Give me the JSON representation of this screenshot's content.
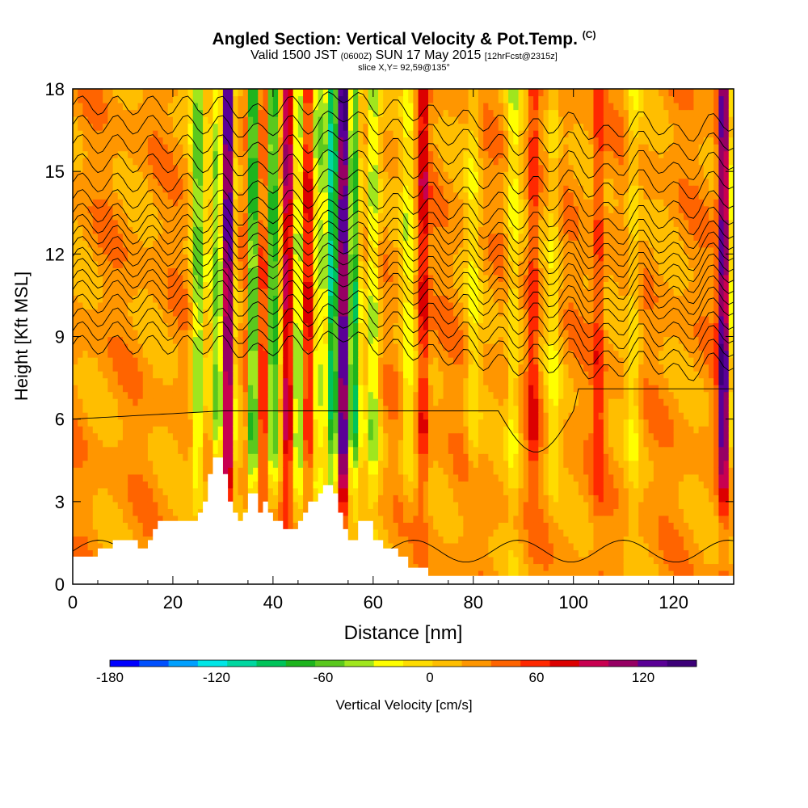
{
  "title": {
    "main": "Angled Section: Vertical Velocity & Pot.Temp.",
    "copyright": "(C)",
    "valid_prefix": "Valid 1500 JST",
    "valid_utc": "(0600Z)",
    "valid_suffix": "SUN 17 May 2015",
    "forecast": "[12hrFcst@2315z]",
    "slice": "slice X,Y= 92,59@135°"
  },
  "colorbar": {
    "title": "Vertical Velocity [cm/s]",
    "tick_labels": [
      "-180",
      "-120",
      "-60",
      "0",
      "60",
      "120"
    ],
    "tick_values": [
      -180,
      -120,
      -60,
      0,
      60,
      120
    ],
    "range": [
      -180,
      150
    ],
    "step": 15,
    "colors": [
      "#0000ff",
      "#0050ff",
      "#00a0ff",
      "#00e6e6",
      "#00d7a0",
      "#00c45a",
      "#1eb41e",
      "#5ac81e",
      "#a0e61e",
      "#ffff00",
      "#ffdc00",
      "#ffbe00",
      "#ff9600",
      "#ff6400",
      "#ff2800",
      "#dc0000",
      "#c80050",
      "#960064",
      "#5a0096",
      "#3c0078"
    ]
  },
  "chart_data": {
    "type": "heatmap",
    "xlabel": "Distance [nm]",
    "ylabel": "Height [Kft MSL]",
    "xlim": [
      0,
      132
    ],
    "ylim": [
      0,
      18
    ],
    "x_ticks": [
      "0",
      "20",
      "40",
      "60",
      "80",
      "100",
      "120"
    ],
    "y_ticks": [
      "0",
      "3",
      "6",
      "9",
      "12",
      "15",
      "18"
    ],
    "x_tick_values": [
      0,
      20,
      40,
      60,
      80,
      100,
      120
    ],
    "y_tick_values": [
      0,
      3,
      6,
      9,
      12,
      15,
      18
    ],
    "field": "Vertical Velocity (cm/s)",
    "contour_field": "Potential Temperature",
    "terrain": [
      [
        0,
        1
      ],
      [
        5,
        1
      ],
      [
        5,
        1.3
      ],
      [
        8,
        1.3
      ],
      [
        8,
        1.6
      ],
      [
        13,
        1.6
      ],
      [
        13,
        1.3
      ],
      [
        15,
        1.3
      ],
      [
        15,
        1.6
      ],
      [
        16,
        1.6
      ],
      [
        16,
        2
      ],
      [
        17,
        2
      ],
      [
        17,
        2.3
      ],
      [
        25,
        2.3
      ],
      [
        25,
        2.6
      ],
      [
        26,
        2.6
      ],
      [
        26,
        3
      ],
      [
        27,
        3
      ],
      [
        27,
        4
      ],
      [
        28,
        4
      ],
      [
        28,
        4.6
      ],
      [
        30,
        4.6
      ],
      [
        30,
        4
      ],
      [
        31,
        4
      ],
      [
        31,
        3
      ],
      [
        32,
        3
      ],
      [
        32,
        2.6
      ],
      [
        33,
        2.6
      ],
      [
        33,
        2.3
      ],
      [
        34,
        2.3
      ],
      [
        34,
        2.6
      ],
      [
        35,
        2.6
      ],
      [
        35,
        3.3
      ],
      [
        37,
        3.3
      ],
      [
        37,
        2.6
      ],
      [
        38,
        2.6
      ],
      [
        38,
        3
      ],
      [
        39,
        3
      ],
      [
        39,
        2.6
      ],
      [
        40,
        2.6
      ],
      [
        40,
        2.3
      ],
      [
        42,
        2.3
      ],
      [
        42,
        2
      ],
      [
        45,
        2
      ],
      [
        45,
        2.3
      ],
      [
        46,
        2.3
      ],
      [
        46,
        2.6
      ],
      [
        47,
        2.6
      ],
      [
        47,
        3
      ],
      [
        49,
        3
      ],
      [
        49,
        3.3
      ],
      [
        50,
        3.3
      ],
      [
        50,
        3.6
      ],
      [
        52,
        3.6
      ],
      [
        52,
        3.3
      ],
      [
        53,
        3.3
      ],
      [
        53,
        2.6
      ],
      [
        54,
        2.6
      ],
      [
        54,
        2
      ],
      [
        55,
        2
      ],
      [
        55,
        1.6
      ],
      [
        57,
        1.6
      ],
      [
        57,
        2.3
      ],
      [
        60,
        2.3
      ],
      [
        60,
        1.6
      ],
      [
        62,
        1.6
      ],
      [
        62,
        1.3
      ],
      [
        65,
        1.3
      ],
      [
        65,
        1
      ],
      [
        67,
        1
      ],
      [
        67,
        0.6
      ],
      [
        71,
        0.6
      ],
      [
        71,
        0.3
      ],
      [
        132,
        0.3
      ]
    ],
    "updrafts": [
      {
        "x": 31,
        "amp": 120
      },
      {
        "x": 34,
        "amp": 60
      },
      {
        "x": 38,
        "amp": 60
      },
      {
        "x": 43,
        "amp": 80
      },
      {
        "x": 47,
        "amp": 60
      },
      {
        "x": 54,
        "amp": 150
      },
      {
        "x": 70,
        "amp": 50
      },
      {
        "x": 92,
        "amp": 40
      },
      {
        "x": 105,
        "amp": 35
      },
      {
        "x": 130,
        "amp": 110
      }
    ],
    "downdrafts": [
      {
        "x": 25,
        "amp": -70
      },
      {
        "x": 29,
        "amp": -70
      },
      {
        "x": 33,
        "amp": -60
      },
      {
        "x": 36,
        "amp": -100
      },
      {
        "x": 40,
        "amp": -90
      },
      {
        "x": 45,
        "amp": -70
      },
      {
        "x": 49,
        "amp": -60
      },
      {
        "x": 52,
        "amp": -120
      },
      {
        "x": 56,
        "amp": -100
      },
      {
        "x": 60,
        "amp": -60
      },
      {
        "x": 67,
        "amp": -40
      },
      {
        "x": 80,
        "amp": -30
      },
      {
        "x": 88,
        "amp": -40
      },
      {
        "x": 96,
        "amp": -30
      },
      {
        "x": 112,
        "amp": -30
      },
      {
        "x": 132,
        "amp": -50
      }
    ],
    "contour_levels": [
      1.2,
      6,
      8.7,
      9.2,
      9.7,
      10.2,
      10.7,
      11.1,
      11.5,
      11.9,
      12.3,
      12.7,
      13.1,
      13.5,
      14,
      14.6,
      15.3,
      16,
      16.7,
      17.4
    ]
  }
}
